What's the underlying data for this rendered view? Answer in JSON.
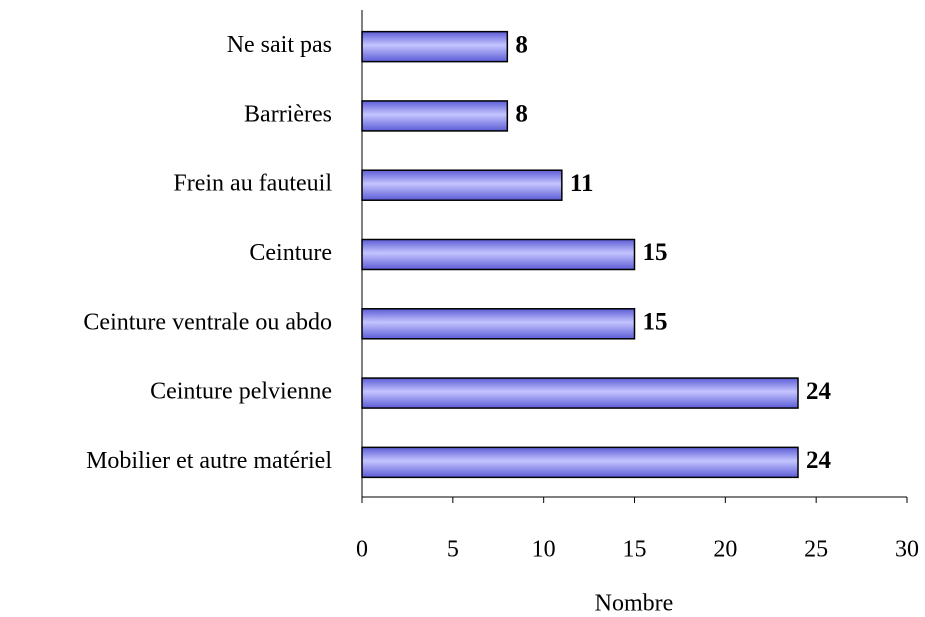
{
  "chart_data": {
    "type": "bar",
    "orientation": "horizontal",
    "categories": [
      "Ne sait pas",
      "Barrières",
      "Frein au fauteuil",
      "Ceinture",
      "Ceinture ventrale ou abdo",
      "Ceinture pelvienne",
      "Mobilier et autre matériel"
    ],
    "values": [
      8,
      8,
      11,
      15,
      15,
      24,
      24
    ],
    "color": "#8080ff",
    "xlabel": "Nombre",
    "xlim": [
      0,
      30
    ],
    "xticks": [
      0,
      5,
      10,
      15,
      20,
      25,
      30
    ],
    "grid": false
  }
}
